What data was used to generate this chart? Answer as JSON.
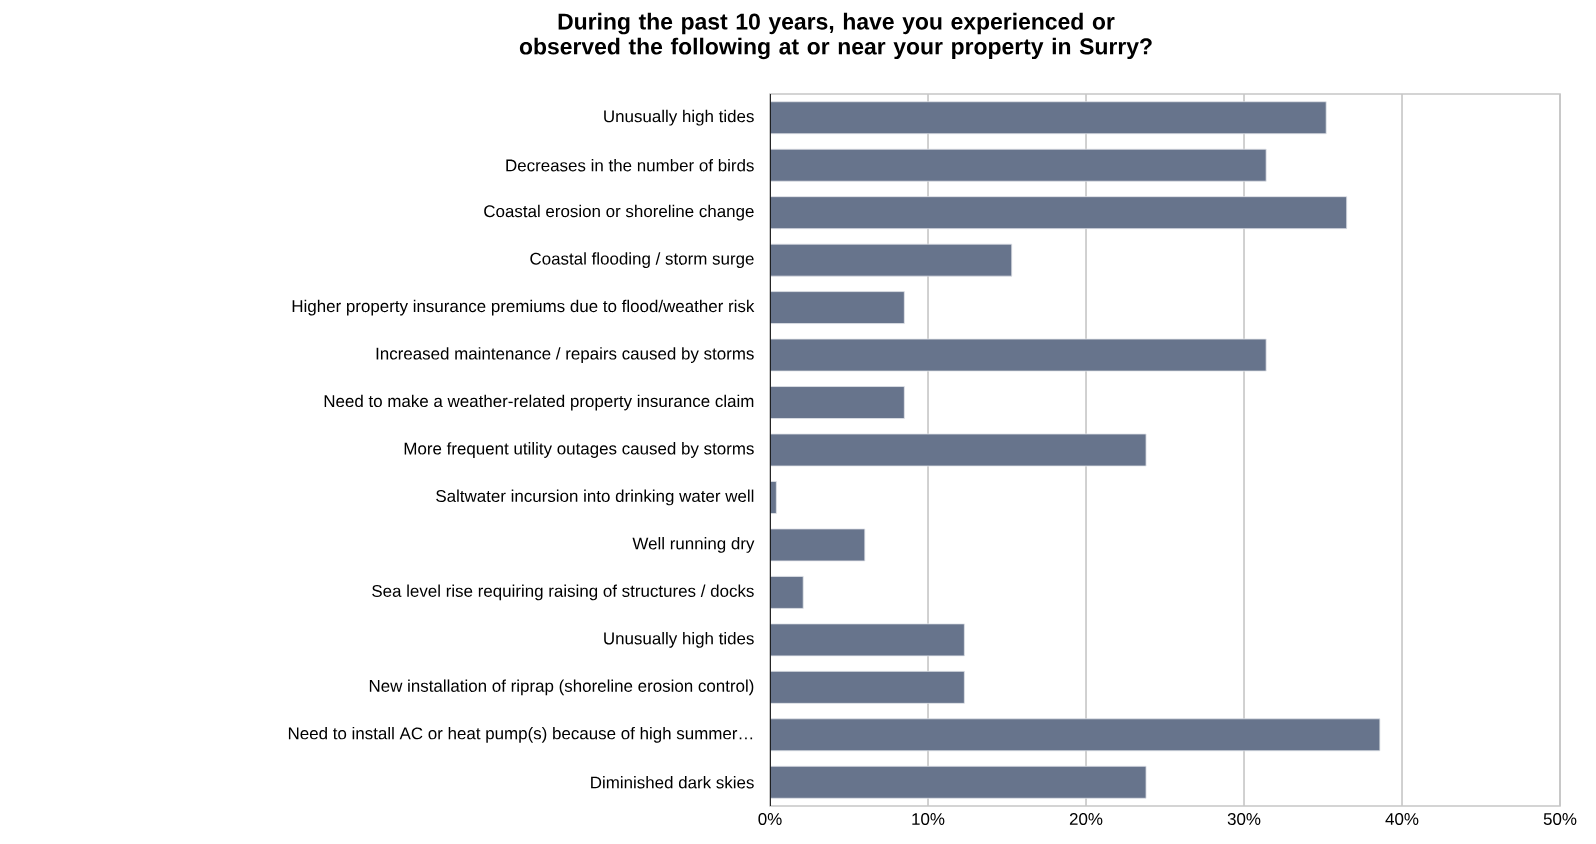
{
  "chart_data": {
    "type": "bar",
    "orientation": "horizontal",
    "title": "During the past 10 years, have you experienced or observed the following at or near your property in Surry?",
    "categories": [
      "Unusually high tides",
      "Decreases in the number of birds",
      "Coastal erosion or shoreline change",
      "Coastal flooding / storm surge",
      "Higher property insurance premiums due to flood/weather risk",
      "Increased maintenance / repairs caused by storms",
      "Need to make a weather-related property insurance claim",
      "More frequent utility outages caused by storms",
      "Saltwater incursion into drinking water well",
      "Well running dry",
      "Sea level rise requiring raising of structures / docks",
      "Unusually high tides",
      "New installation of riprap (shoreline erosion control)",
      "Need to install AC or heat pump(s) because of high summer…",
      "Diminished dark skies"
    ],
    "values": [
      35.2,
      31.4,
      36.5,
      15.3,
      8.5,
      31.4,
      8.5,
      23.8,
      0.4,
      6.0,
      2.1,
      12.3,
      12.3,
      38.6,
      23.8
    ],
    "color": "#67748c",
    "xlim": [
      0,
      50
    ],
    "xticks": [
      {
        "value": 0,
        "label": "0%"
      },
      {
        "value": 10,
        "label": "10%"
      },
      {
        "value": 20,
        "label": "20%"
      },
      {
        "value": 30,
        "label": "30%"
      },
      {
        "value": 40,
        "label": "40%"
      },
      {
        "value": 50,
        "label": "50%"
      }
    ],
    "grid": "x"
  }
}
